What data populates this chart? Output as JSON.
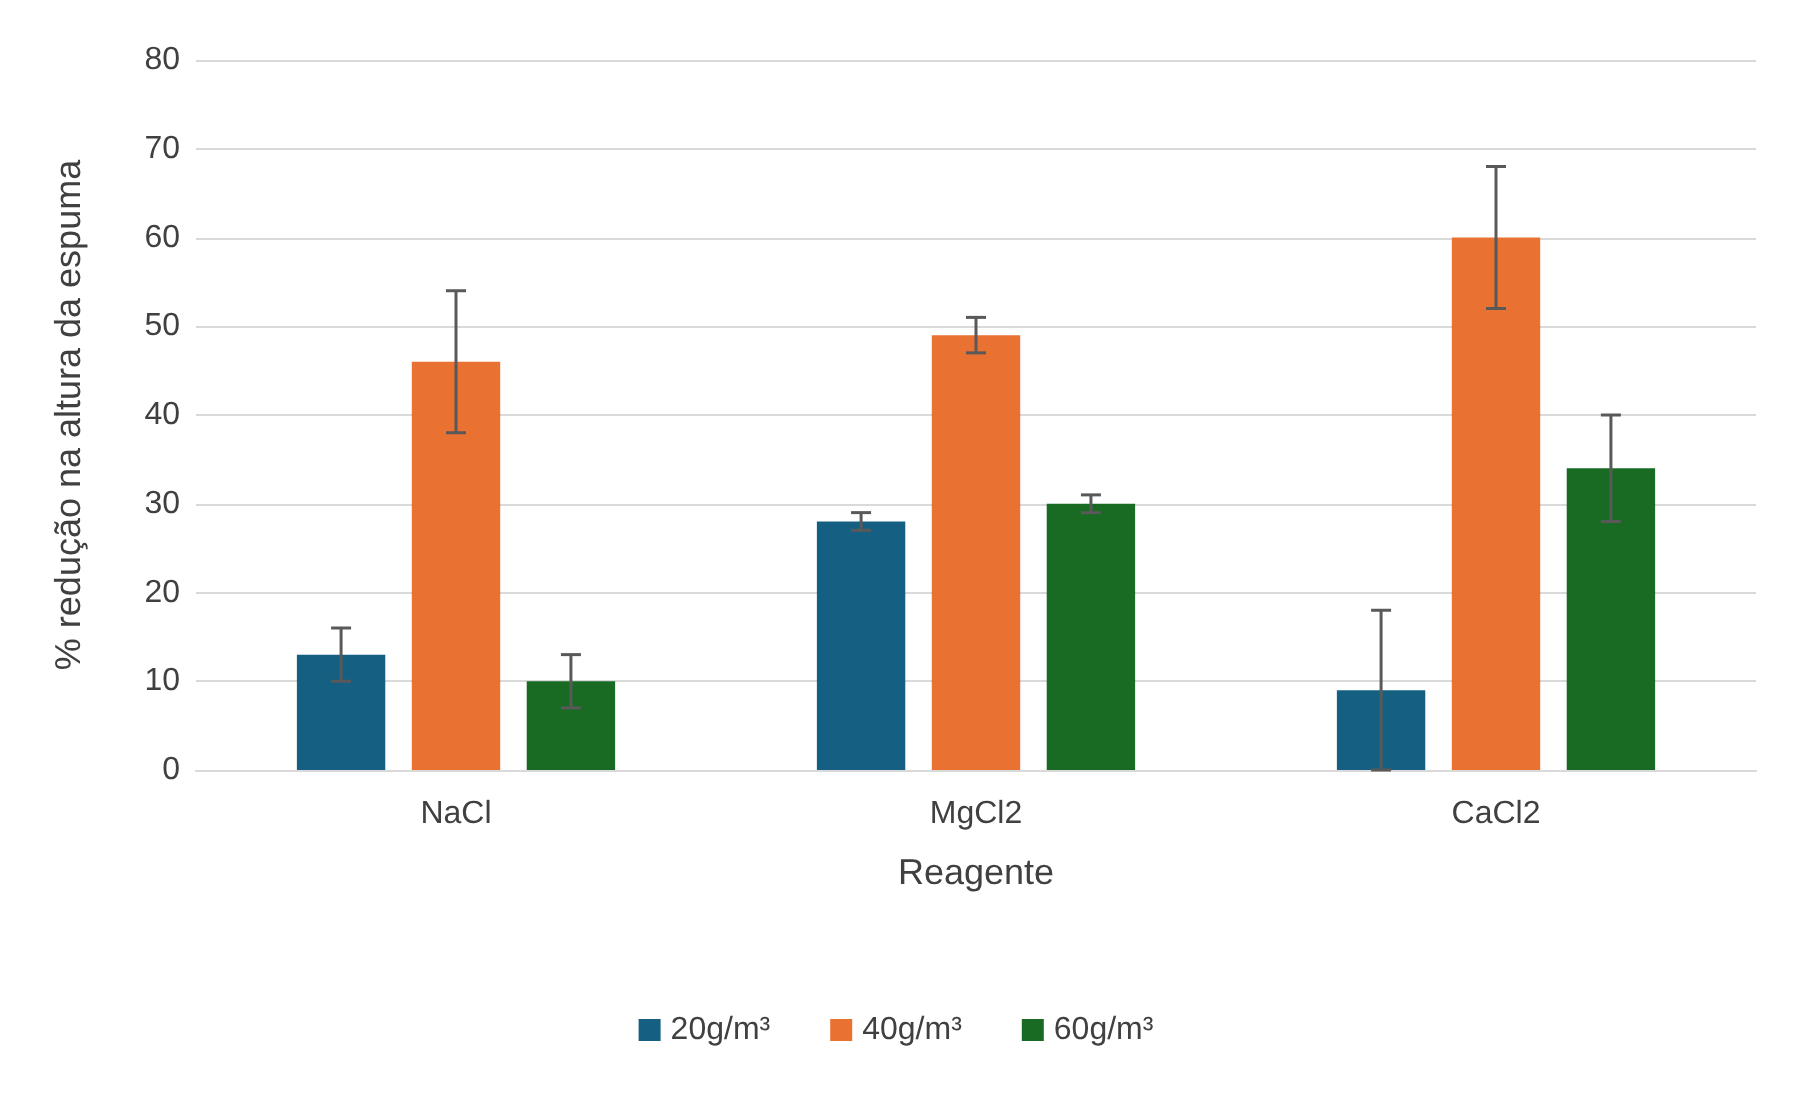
{
  "chart_data": {
    "type": "bar",
    "xlabel": "Reagente",
    "ylabel": "% redução na altura da espuma",
    "categories": [
      "NaCl",
      "MgCl2",
      "CaCl2"
    ],
    "series": [
      {
        "name": "20g/m³",
        "color": "#156082",
        "values": [
          13,
          28,
          9
        ],
        "errors": [
          3,
          1,
          9
        ]
      },
      {
        "name": "40g/m³",
        "color": "#e97132",
        "values": [
          46,
          49,
          60
        ],
        "errors": [
          8,
          2,
          8
        ]
      },
      {
        "name": "60g/m³",
        "color": "#196b24",
        "values": [
          10,
          30,
          34
        ],
        "errors": [
          3,
          1,
          6
        ]
      }
    ],
    "ylim": [
      0,
      80
    ],
    "yticks": [
      0,
      10,
      20,
      30,
      40,
      50,
      60,
      70,
      80
    ],
    "grid": "y",
    "legend": "bottom"
  }
}
